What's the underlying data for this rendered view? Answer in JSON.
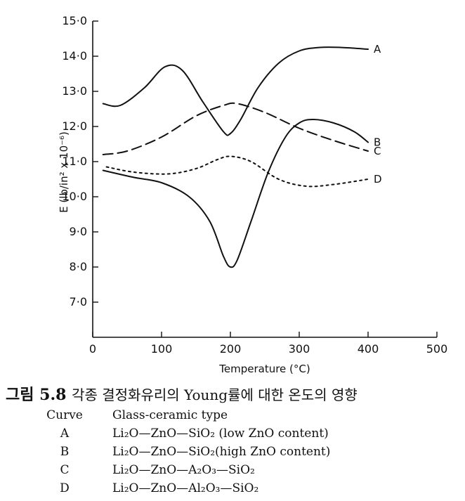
{
  "chart_data": {
    "type": "line",
    "xlabel": "Temperature (°C)",
    "ylabel": "E (lb/in² x 10⁻⁶)",
    "xlim": [
      0,
      500
    ],
    "ylim": [
      6.0,
      15.0
    ],
    "xticks": [
      "0",
      "100",
      "200",
      "300",
      "400",
      "500"
    ],
    "yticks": [
      "7·0",
      "8·0",
      "9·0",
      "10·0",
      "11·0",
      "12·0",
      "13·0",
      "14·0",
      "15·0"
    ],
    "grid": false,
    "series": [
      {
        "name": "A",
        "line_style": "solid",
        "x": [
          15,
          40,
          75,
          105,
          130,
          160,
          190,
          200,
          215,
          240,
          270,
          300,
          330,
          360,
          400
        ],
        "y": [
          12.65,
          12.6,
          13.1,
          13.7,
          13.6,
          12.7,
          11.85,
          11.8,
          12.2,
          13.1,
          13.8,
          14.15,
          14.25,
          14.25,
          14.2
        ]
      },
      {
        "name": "B",
        "line_style": "solid",
        "x": [
          15,
          60,
          100,
          140,
          170,
          190,
          200,
          210,
          230,
          255,
          280,
          300,
          320,
          350,
          380,
          400
        ],
        "y": [
          10.75,
          10.55,
          10.4,
          10.0,
          9.3,
          8.3,
          8.0,
          8.2,
          9.3,
          10.7,
          11.7,
          12.1,
          12.2,
          12.1,
          11.85,
          11.55
        ]
      },
      {
        "name": "C",
        "line_style": "dashed",
        "x": [
          15,
          50,
          100,
          150,
          190,
          210,
          250,
          300,
          350,
          400
        ],
        "y": [
          11.2,
          11.3,
          11.7,
          12.3,
          12.6,
          12.65,
          12.4,
          11.95,
          11.6,
          11.3
        ]
      },
      {
        "name": "D",
        "line_style": "dotted",
        "x": [
          20,
          60,
          110,
          150,
          180,
          200,
          230,
          270,
          310,
          350,
          400
        ],
        "y": [
          10.85,
          10.7,
          10.65,
          10.8,
          11.05,
          11.15,
          11.0,
          10.5,
          10.3,
          10.35,
          10.5
        ]
      }
    ],
    "caption": {
      "label": "그림 5.8",
      "text": "각종 결정화유리의 Young률에 대한 온도의 영향"
    },
    "legend": {
      "header_curve": "Curve",
      "header_type": "Glass-ceramic type",
      "rows": [
        {
          "curve": "A",
          "type": "Li₂O—ZnO—SiO₂ (low ZnO content)"
        },
        {
          "curve": "B",
          "type": "Li₂O—ZnO—SiO₂(high ZnO content)"
        },
        {
          "curve": "C",
          "type": "Li₂O—ZnO—A₂O₃—SiO₂"
        },
        {
          "curve": "D",
          "type": "Li₂O—ZnO—Al₂O₃—SiO₂"
        }
      ]
    }
  }
}
